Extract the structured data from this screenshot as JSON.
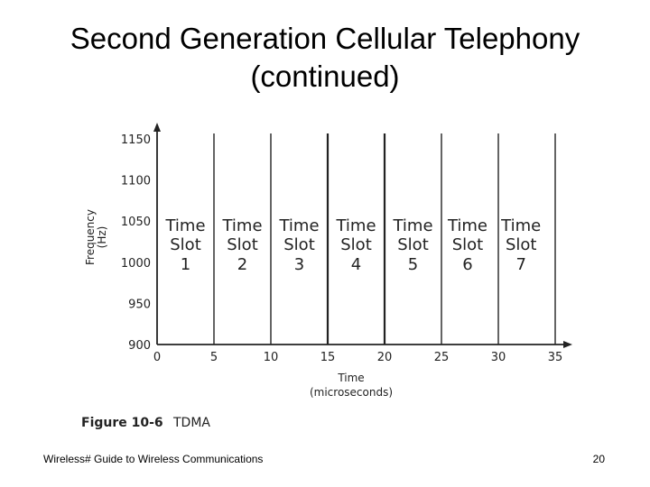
{
  "slide": {
    "title_line1": "Second Generation Cellular Telephony",
    "title_line2": "(continued)",
    "footer": "Wireless# Guide to Wireless Communications",
    "page_number": "20"
  },
  "chart_data": {
    "type": "diagram",
    "figure_label": "Figure 10-6",
    "figure_caption": "TDMA",
    "ylabel_line1": "Frequency",
    "ylabel_line2": "(Hz)",
    "xlabel_line1": "Time",
    "xlabel_line2": "(microseconds)",
    "x_ticks": [
      0,
      5,
      10,
      15,
      20,
      25,
      30,
      35
    ],
    "y_ticks": [
      900,
      950,
      1000,
      1050,
      1100,
      1150
    ],
    "xlim": [
      0,
      35
    ],
    "ylim": [
      900,
      1150
    ],
    "slot_boundaries": [
      5,
      10,
      15,
      20,
      25,
      30,
      35
    ],
    "slots": [
      {
        "line1": "Time",
        "line2": "Slot",
        "line3": "1",
        "x": 2.5
      },
      {
        "line1": "Time",
        "line2": "Slot",
        "line3": "2",
        "x": 7.5
      },
      {
        "line1": "Time",
        "line2": "Slot",
        "line3": "3",
        "x": 12.5
      },
      {
        "line1": "Time",
        "line2": "Slot",
        "line3": "4",
        "x": 17.5
      },
      {
        "line1": "Time",
        "line2": "Slot",
        "line3": "5",
        "x": 22.5
      },
      {
        "line1": "Time",
        "line2": "Slot",
        "line3": "6",
        "x": 27.3
      },
      {
        "line1": "Time",
        "line2": "Slot",
        "line3": "7",
        "x": 32.0
      }
    ]
  }
}
